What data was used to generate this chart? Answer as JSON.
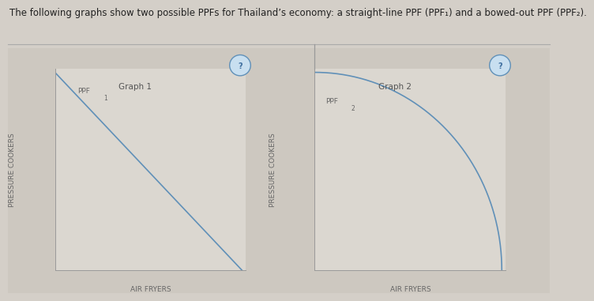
{
  "title": "The following graphs show two possible PPFs for Thailand’s economy: a straight-line PPF (PPF₁) and a bowed-out PPF (PPF₂).",
  "graph1_title": "Graph 1",
  "graph2_title": "Graph 2",
  "xlabel": "AIR FRYERS",
  "ylabel": "PRESSURE COOKERS",
  "ppf1_label": "PPF",
  "ppf1_sub": "1",
  "ppf2_label": "PPF",
  "ppf2_sub": "2",
  "outer_bg": "#d4cfc8",
  "panel_bg": "#cdc8c0",
  "plot_bg": "#dbd7d0",
  "line_color": "#6090b8",
  "axis_line_color": "#999999",
  "title_color": "#222222",
  "label_color": "#666666",
  "graph_title_color": "#555555",
  "title_fontsize": 8.5,
  "label_fontsize": 6.5,
  "graph_title_fontsize": 7.5,
  "q_fill": "#c8dff0",
  "q_border": "#6090b8",
  "q_text": "#4070a0",
  "separator_line_color": "#aaaaaa"
}
